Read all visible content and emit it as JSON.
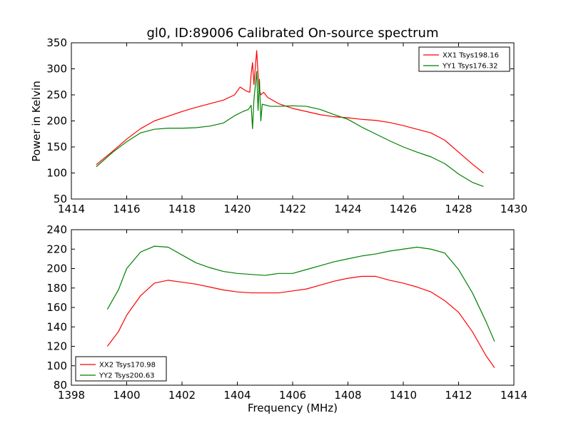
{
  "chart_data": [
    {
      "type": "line",
      "title": "gl0, ID:89006 Calibrated On-source spectrum",
      "xlabel": "",
      "ylabel": "Power in Kelvin",
      "xlim": [
        1414,
        1430
      ],
      "ylim": [
        50,
        350
      ],
      "xticks": [
        "1414",
        "1416",
        "1418",
        "1420",
        "1422",
        "1424",
        "1426",
        "1428",
        "1430"
      ],
      "yticks": [
        "50",
        "100",
        "150",
        "200",
        "250",
        "300",
        "350"
      ],
      "legend_position": "upper right",
      "series": [
        {
          "name": "XX1 Tsys198.16",
          "color": "#ff0000",
          "points": [
            [
              1414.9,
              116
            ],
            [
              1415.5,
              142
            ],
            [
              1416,
              165
            ],
            [
              1416.5,
              185
            ],
            [
              1417,
              200
            ],
            [
              1417.5,
              209
            ],
            [
              1418,
              218
            ],
            [
              1418.5,
              226
            ],
            [
              1419,
              233
            ],
            [
              1419.5,
              240
            ],
            [
              1419.9,
              250
            ],
            [
              1420.1,
              265
            ],
            [
              1420.3,
              258
            ],
            [
              1420.45,
              255
            ],
            [
              1420.5,
              290
            ],
            [
              1420.55,
              312
            ],
            [
              1420.6,
              270
            ],
            [
              1420.7,
              335
            ],
            [
              1420.78,
              262
            ],
            [
              1420.85,
              250
            ],
            [
              1420.95,
              255
            ],
            [
              1421.1,
              245
            ],
            [
              1421.5,
              233
            ],
            [
              1422,
              224
            ],
            [
              1422.5,
              218
            ],
            [
              1423,
              212
            ],
            [
              1423.5,
              208
            ],
            [
              1424,
              206
            ],
            [
              1424.5,
              203
            ],
            [
              1425,
              201
            ],
            [
              1425.5,
              197
            ],
            [
              1426,
              191
            ],
            [
              1426.5,
              184
            ],
            [
              1427,
              177
            ],
            [
              1427.5,
              163
            ],
            [
              1428,
              140
            ],
            [
              1428.5,
              117
            ],
            [
              1428.9,
              100
            ]
          ]
        },
        {
          "name": "YY1 Tsys176.32",
          "color": "#008000",
          "points": [
            [
              1414.9,
              112
            ],
            [
              1415.5,
              140
            ],
            [
              1416,
              160
            ],
            [
              1416.5,
              177
            ],
            [
              1417,
              184
            ],
            [
              1417.5,
              186
            ],
            [
              1418,
              186
            ],
            [
              1418.5,
              187
            ],
            [
              1419,
              190
            ],
            [
              1419.5,
              196
            ],
            [
              1419.9,
              210
            ],
            [
              1420.2,
              218
            ],
            [
              1420.4,
              222
            ],
            [
              1420.5,
              230
            ],
            [
              1420.55,
              185
            ],
            [
              1420.6,
              240
            ],
            [
              1420.7,
              295
            ],
            [
              1420.75,
              220
            ],
            [
              1420.8,
              280
            ],
            [
              1420.85,
              200
            ],
            [
              1420.9,
              232
            ],
            [
              1421.2,
              228
            ],
            [
              1421.5,
              228
            ],
            [
              1422,
              229
            ],
            [
              1422.5,
              228
            ],
            [
              1423,
              222
            ],
            [
              1423.5,
              212
            ],
            [
              1424,
              203
            ],
            [
              1424.5,
              188
            ],
            [
              1425,
              175
            ],
            [
              1425.5,
              162
            ],
            [
              1426,
              150
            ],
            [
              1426.5,
              140
            ],
            [
              1427,
              131
            ],
            [
              1427.5,
              118
            ],
            [
              1428,
              98
            ],
            [
              1428.5,
              82
            ],
            [
              1428.9,
              74
            ]
          ]
        }
      ]
    },
    {
      "type": "line",
      "title": "",
      "xlabel": "Frequency (MHz)",
      "ylabel": "",
      "xlim": [
        1398,
        1414
      ],
      "ylim": [
        80,
        240
      ],
      "xticks": [
        "1398",
        "1400",
        "1402",
        "1404",
        "1406",
        "1408",
        "1410",
        "1412",
        "1414"
      ],
      "yticks": [
        "80",
        "100",
        "120",
        "140",
        "160",
        "180",
        "200",
        "220",
        "240"
      ],
      "legend_position": "lower left",
      "series": [
        {
          "name": "XX2 Tsys170.98",
          "color": "#ff0000",
          "points": [
            [
              1399.3,
              120
            ],
            [
              1399.7,
              135
            ],
            [
              1400,
              152
            ],
            [
              1400.5,
              172
            ],
            [
              1401,
              185
            ],
            [
              1401.5,
              188
            ],
            [
              1402,
              186
            ],
            [
              1402.5,
              184
            ],
            [
              1403,
              181
            ],
            [
              1403.5,
              178
            ],
            [
              1404,
              176
            ],
            [
              1404.5,
              175
            ],
            [
              1405,
              175
            ],
            [
              1405.5,
              175
            ],
            [
              1406,
              177
            ],
            [
              1406.5,
              179
            ],
            [
              1407,
              183
            ],
            [
              1407.5,
              187
            ],
            [
              1408,
              190
            ],
            [
              1408.5,
              192
            ],
            [
              1409,
              192
            ],
            [
              1409.5,
              188
            ],
            [
              1410,
              185
            ],
            [
              1410.5,
              181
            ],
            [
              1411,
              176
            ],
            [
              1411.5,
              167
            ],
            [
              1412,
              155
            ],
            [
              1412.5,
              135
            ],
            [
              1413,
              110
            ],
            [
              1413.3,
              98
            ]
          ]
        },
        {
          "name": "YY2 Tsys200.63",
          "color": "#008000",
          "points": [
            [
              1399.3,
              158
            ],
            [
              1399.7,
              178
            ],
            [
              1400,
              200
            ],
            [
              1400.5,
              217
            ],
            [
              1401,
              223
            ],
            [
              1401.5,
              222
            ],
            [
              1402,
              214
            ],
            [
              1402.5,
              206
            ],
            [
              1403,
              201
            ],
            [
              1403.5,
              197
            ],
            [
              1404,
              195
            ],
            [
              1404.5,
              194
            ],
            [
              1405,
              193
            ],
            [
              1405.5,
              195
            ],
            [
              1406,
              195
            ],
            [
              1406.5,
              199
            ],
            [
              1407,
              203
            ],
            [
              1407.5,
              207
            ],
            [
              1408,
              210
            ],
            [
              1408.5,
              213
            ],
            [
              1409,
              215
            ],
            [
              1409.5,
              218
            ],
            [
              1410,
              220
            ],
            [
              1410.5,
              222
            ],
            [
              1411,
              220
            ],
            [
              1411.5,
              216
            ],
            [
              1412,
              199
            ],
            [
              1412.5,
              175
            ],
            [
              1413,
              145
            ],
            [
              1413.3,
              125
            ]
          ]
        }
      ]
    }
  ]
}
